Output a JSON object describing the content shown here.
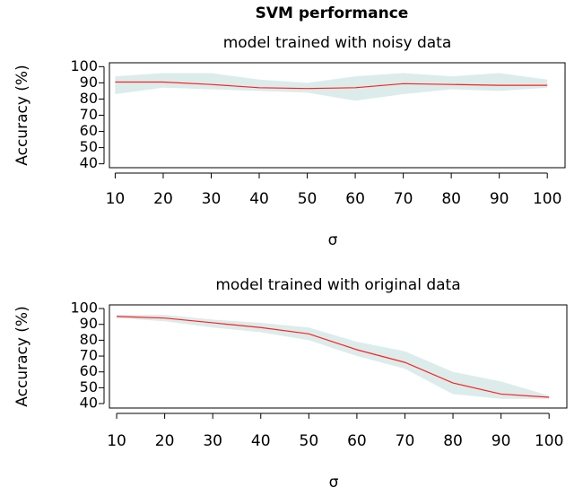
{
  "title": "SVM performance",
  "chart_data": [
    {
      "type": "line",
      "title": "model trained with noisy data",
      "xlabel": "σ",
      "ylabel": "Accuracy (%)",
      "x": [
        10,
        20,
        30,
        40,
        50,
        60,
        70,
        80,
        90,
        100
      ],
      "values": [
        90.5,
        90.5,
        89,
        87,
        86.5,
        87,
        89.5,
        89,
        88.5,
        88.5
      ],
      "lower": [
        83,
        87,
        86,
        85,
        84,
        79,
        83,
        86,
        85,
        87
      ],
      "upper": [
        94,
        96,
        96,
        92,
        90,
        94,
        96,
        94,
        96,
        92
      ],
      "color": "#ff2020",
      "band_color": "#dbeceb",
      "xlim": [
        8.8,
        103.7
      ],
      "ylim": [
        37.6,
        102.4
      ],
      "xticks": [
        10,
        20,
        30,
        40,
        50,
        60,
        70,
        80,
        90,
        100
      ],
      "yticks": [
        40,
        50,
        60,
        70,
        80,
        90,
        100
      ]
    },
    {
      "type": "line",
      "title": "model trained with original data",
      "xlabel": "σ",
      "ylabel": "Accuracy (%)",
      "x": [
        10,
        20,
        30,
        40,
        50,
        60,
        70,
        80,
        90,
        100
      ],
      "values": [
        95,
        94,
        91,
        88,
        84,
        74,
        66,
        53,
        46,
        44
      ],
      "lower": [
        94,
        92,
        88,
        85,
        80,
        70,
        62,
        46,
        43,
        43
      ],
      "upper": [
        96,
        96,
        93,
        91,
        88,
        79,
        73,
        60,
        54,
        45
      ],
      "color": "#ff2020",
      "band_color": "#dbeceb",
      "xlim": [
        8.5,
        103.7
      ],
      "ylim": [
        37.2,
        102.3
      ],
      "xticks": [
        10,
        20,
        30,
        40,
        50,
        60,
        70,
        80,
        90,
        100
      ],
      "yticks": [
        40,
        50,
        60,
        70,
        80,
        90,
        100
      ]
    }
  ]
}
